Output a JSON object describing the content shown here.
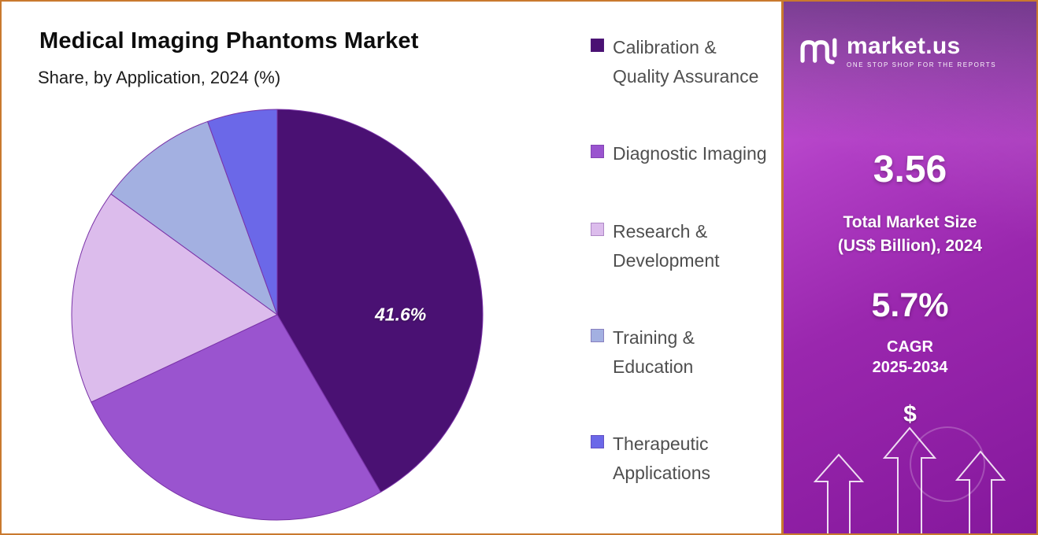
{
  "header": {
    "title": "Medical Imaging Phantoms Market",
    "subtitle": "Share, by Application, 2024 (%)"
  },
  "chart_data": {
    "type": "pie",
    "title": "Medical Imaging Phantoms Market",
    "subtitle": "Share, by Application, 2024 (%)",
    "labels": [
      "Calibration & Quality Assurance",
      "Diagnostic Imaging",
      "Research & Development",
      "Training & Education",
      "Therapeutic Applications"
    ],
    "values": [
      41.6,
      26.4,
      17.0,
      9.5,
      5.5
    ],
    "colors": [
      "#4a1173",
      "#9a54cf",
      "#dcbcec",
      "#a3b0e1",
      "#6b68e8"
    ],
    "data_labels": [
      "41.6%",
      "",
      "",
      "",
      ""
    ],
    "start_angle_deg": 0,
    "direction": "clockwise",
    "legend_position": "right",
    "stroke_color": "#7a33a8"
  },
  "sidebar": {
    "logo_text": "market.us",
    "logo_tagline": "ONE STOP SHOP FOR THE REPORTS",
    "market_size_value": "3.56",
    "market_size_label_line1": "Total Market Size",
    "market_size_label_line2": "(US$ Billion), 2024",
    "cagr_value": "5.7%",
    "cagr_label": "CAGR",
    "cagr_period": "2025-2034",
    "currency_symbol": "$",
    "accent_border": "#c9792e",
    "panel_gradient_top": "#cf63dd",
    "panel_gradient_bottom": "#85189c"
  }
}
